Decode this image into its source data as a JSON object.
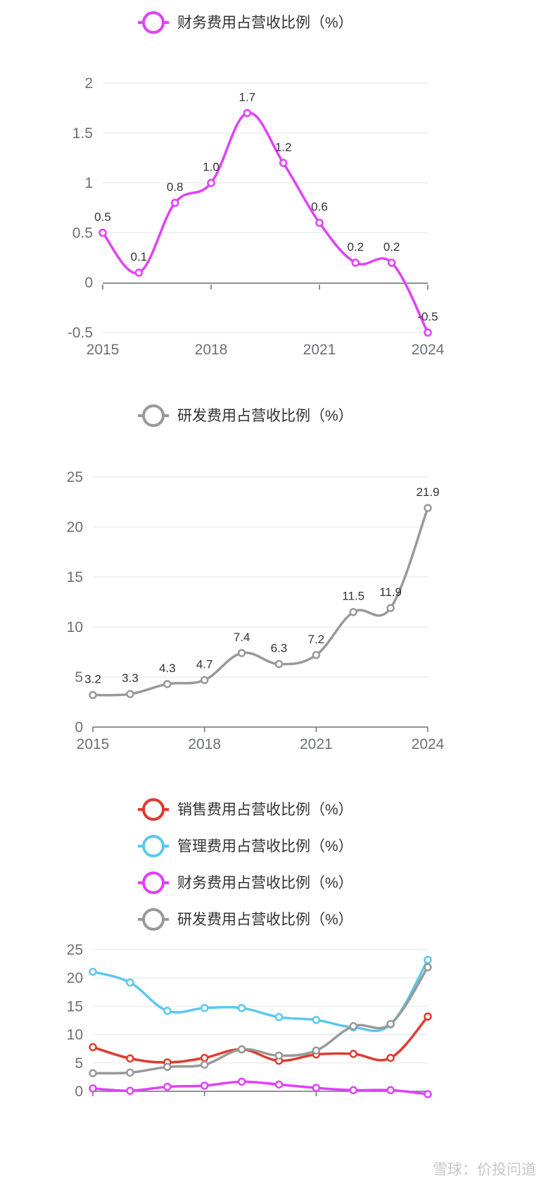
{
  "charts": [
    {
      "title": "财务费用占营收比例（%）",
      "type": "line",
      "x": [
        2015,
        2016,
        2017,
        2018,
        2019,
        2020,
        2021,
        2022,
        2023,
        2024
      ],
      "x_tick_labels": [
        "2015",
        "2018",
        "2021",
        "2024"
      ],
      "y_tick_labels": [
        "-0.5",
        "0",
        "0.5",
        "1",
        "1.5",
        "2"
      ],
      "ylim": [
        -0.5,
        2
      ],
      "series": [
        {
          "name": "财务费用占营收比例（%）",
          "color": "#e040fb",
          "values": [
            0.5,
            0.1,
            0.8,
            1.0,
            1.7,
            1.2,
            0.6,
            0.2,
            0.2,
            -0.5
          ],
          "labels": [
            "0.5",
            "0.1",
            "0.8",
            "1.0",
            "1.7",
            "1.2",
            "0.6",
            "0.2",
            "0.2",
            "-0.5"
          ]
        }
      ]
    },
    {
      "title": "研发费用占营收比例（%）",
      "type": "line",
      "x": [
        2015,
        2016,
        2017,
        2018,
        2019,
        2020,
        2021,
        2022,
        2023,
        2024
      ],
      "x_tick_labels": [
        "2015",
        "2018",
        "2021",
        "2024"
      ],
      "y_tick_labels": [
        "0",
        "5",
        "10",
        "15",
        "20",
        "25"
      ],
      "ylim": [
        0,
        25
      ],
      "series": [
        {
          "name": "研发费用占营收比例（%）",
          "color": "#999999",
          "values": [
            3.2,
            3.3,
            4.3,
            4.7,
            7.4,
            6.3,
            7.2,
            11.5,
            11.9,
            21.9
          ],
          "labels": [
            "3.2",
            "3.3",
            "4.3",
            "4.7",
            "7.4",
            "6.3",
            "7.2",
            "11.5",
            "11.9",
            "21.9"
          ]
        }
      ]
    },
    {
      "title": "",
      "type": "line",
      "x": [
        2015,
        2016,
        2017,
        2018,
        2019,
        2020,
        2021,
        2022,
        2023,
        2024
      ],
      "x_tick_labels": [],
      "y_tick_labels": [
        "0",
        "5",
        "10",
        "15",
        "20",
        "25"
      ],
      "ylim": [
        0,
        25
      ],
      "series": [
        {
          "name": "销售费用占营收比例（%）",
          "color": "#e03a2f",
          "values": [
            7.8,
            5.8,
            5.1,
            5.9,
            7.4,
            5.4,
            6.5,
            6.6,
            5.9,
            13.2
          ]
        },
        {
          "name": "管理费用占营收比例（%）",
          "color": "#5bc8f0",
          "values": [
            21.1,
            19.2,
            14.2,
            14.7,
            14.7,
            13.1,
            12.6,
            11.3,
            11.8,
            23.2
          ]
        },
        {
          "name": "财务费用占营收比例（%）",
          "color": "#e040fb",
          "values": [
            0.5,
            0.1,
            0.8,
            1.0,
            1.7,
            1.2,
            0.6,
            0.2,
            0.2,
            -0.5
          ]
        },
        {
          "name": "研发费用占营收比例（%）",
          "color": "#999999",
          "values": [
            3.2,
            3.3,
            4.3,
            4.7,
            7.4,
            6.3,
            7.2,
            11.5,
            11.9,
            21.9
          ]
        }
      ]
    }
  ],
  "watermark": "雪球：价投问道"
}
